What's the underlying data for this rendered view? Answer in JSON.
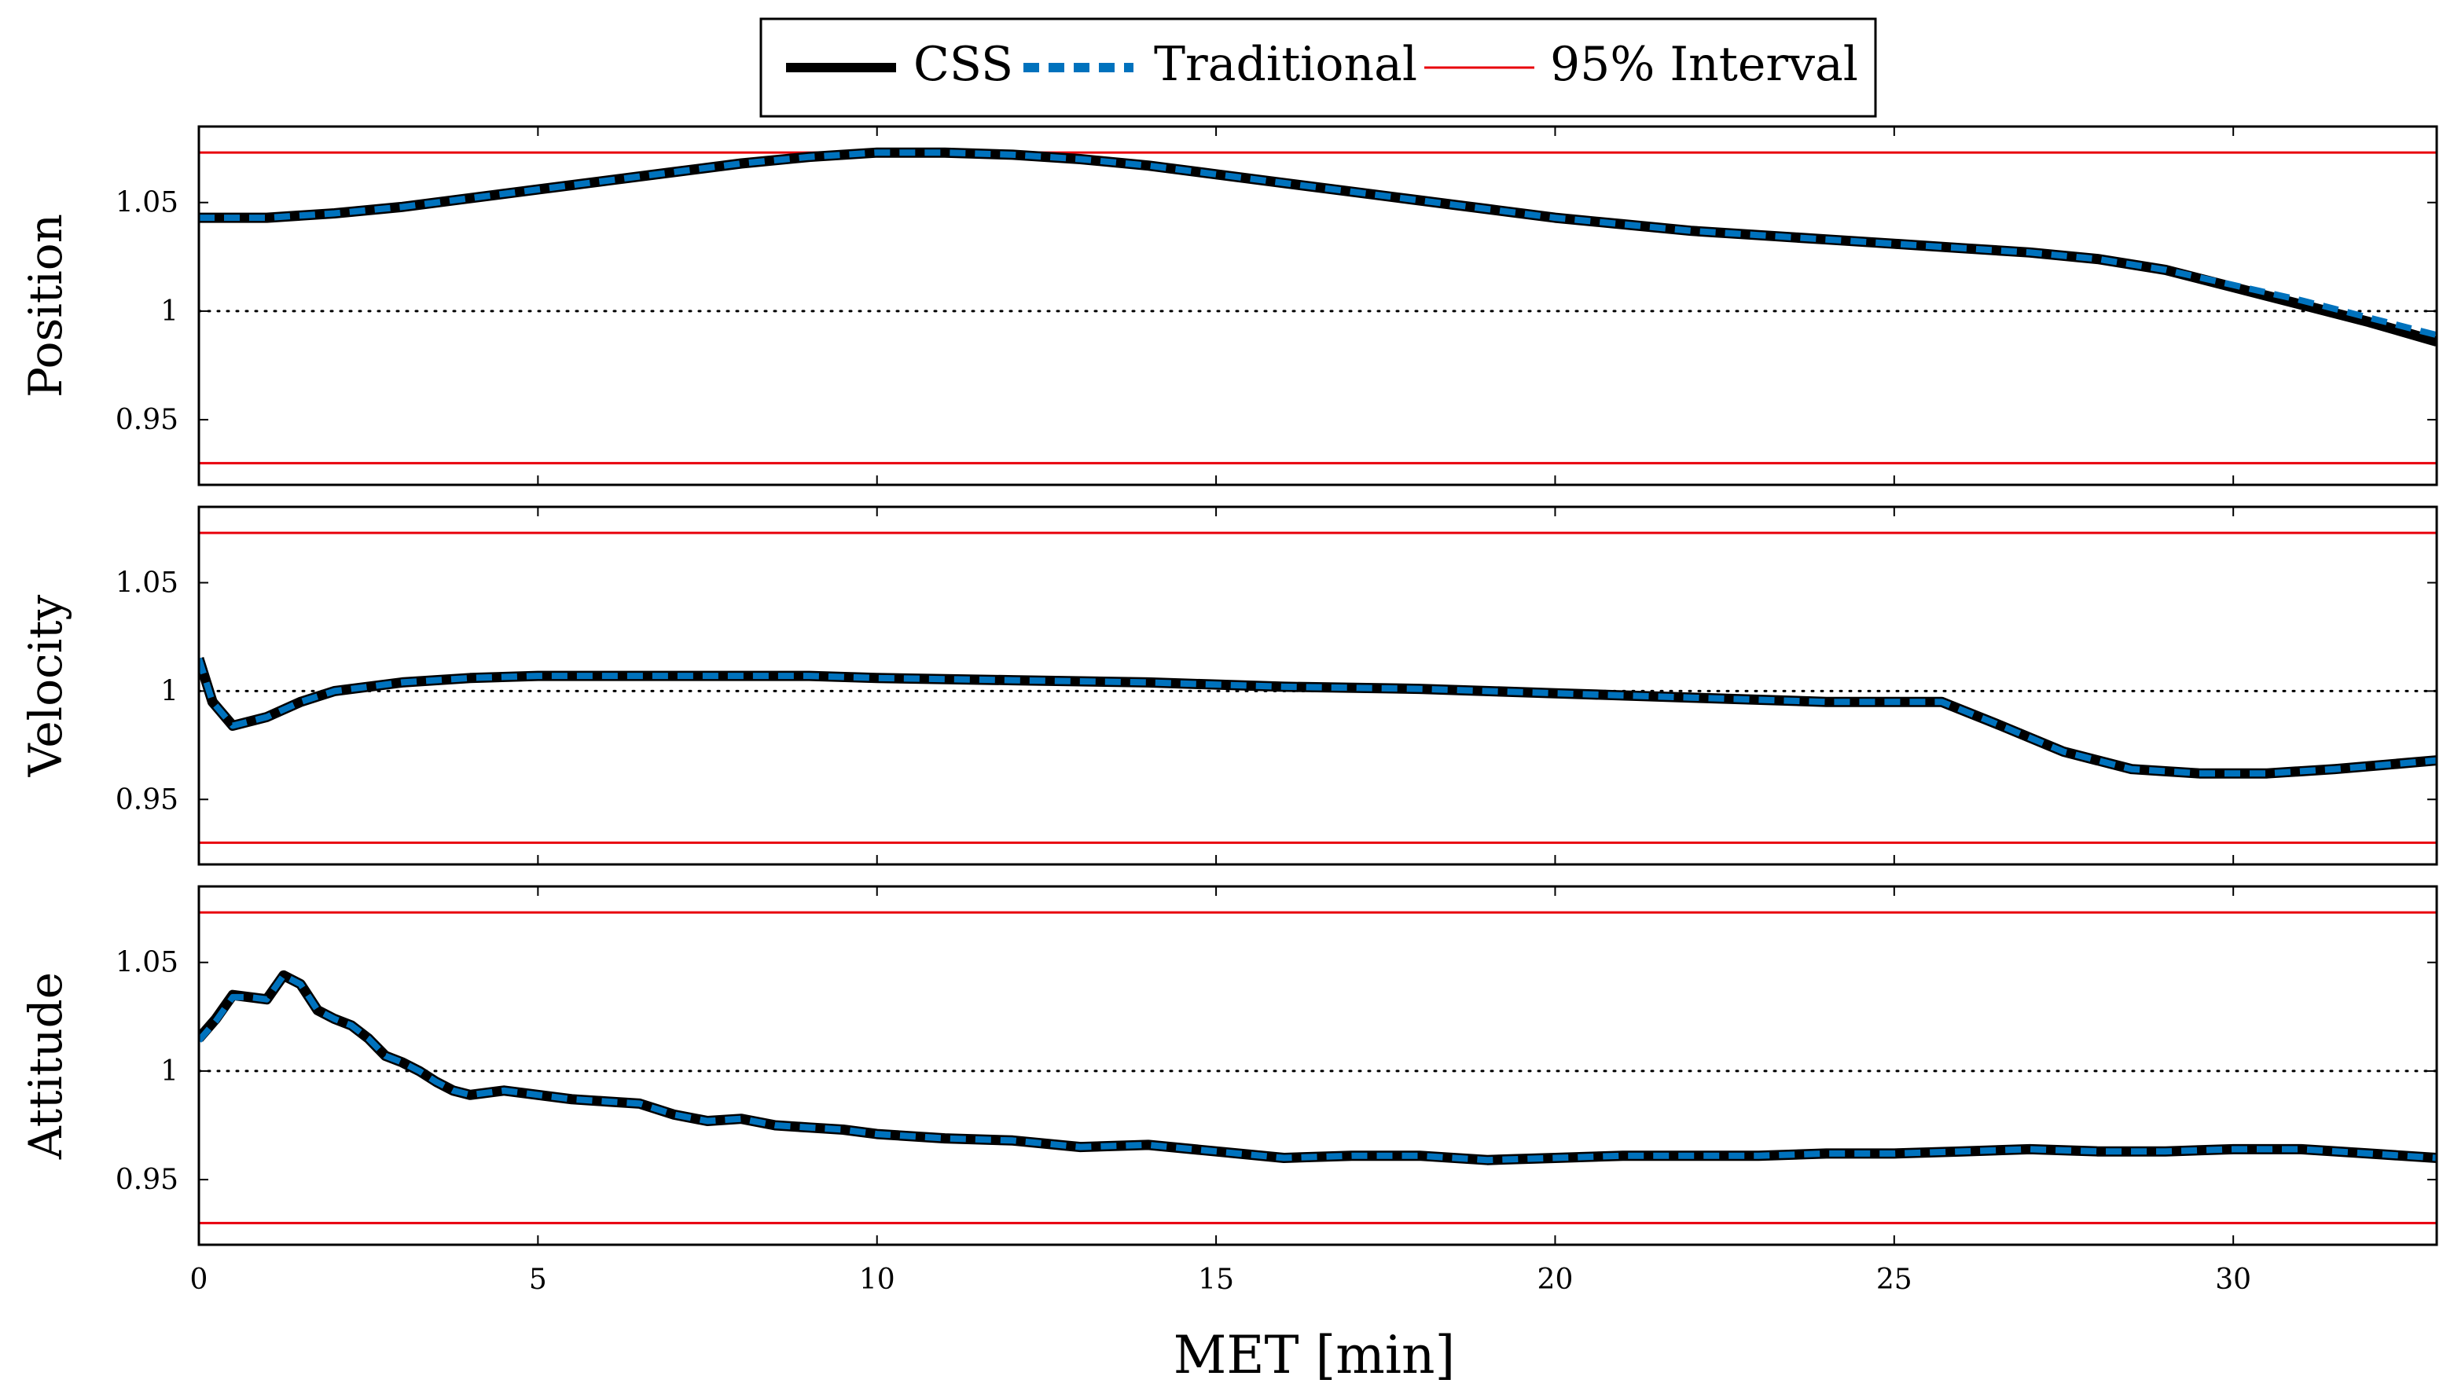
{
  "chart_data": {
    "type": "line",
    "xlabel": "MET [min]",
    "xlim": [
      0,
      33
    ],
    "xticks": [
      0,
      5,
      10,
      15,
      20,
      25,
      30
    ],
    "legend": {
      "placement": "top-center",
      "entries": [
        {
          "label": "CSS",
          "color": "#000000",
          "style": "solid-thick"
        },
        {
          "label": "Traditional",
          "color": "#0072bd",
          "style": "dashed-thick"
        },
        {
          "label": "95% Interval",
          "color": "#e8000b",
          "style": "solid-thin"
        }
      ]
    },
    "reference_line": 1.0,
    "panels": [
      {
        "ylabel": "Position",
        "ylim": [
          0.92,
          1.085
        ],
        "yticks": [
          0.95,
          1,
          1.05
        ],
        "interval": [
          0.93,
          1.073
        ],
        "series": [
          {
            "name": "CSS",
            "x": [
              0,
              1,
              2,
              3,
              4,
              5,
              6,
              7,
              8,
              9,
              10,
              11,
              12,
              13,
              14,
              15,
              16,
              17,
              18,
              19,
              20,
              21,
              22,
              23,
              24,
              25,
              26,
              27,
              28,
              29,
              30,
              31,
              32,
              33
            ],
            "y": [
              1.043,
              1.043,
              1.045,
              1.048,
              1.052,
              1.056,
              1.06,
              1.064,
              1.068,
              1.071,
              1.073,
              1.073,
              1.072,
              1.07,
              1.067,
              1.063,
              1.059,
              1.055,
              1.051,
              1.047,
              1.043,
              1.04,
              1.037,
              1.035,
              1.033,
              1.031,
              1.029,
              1.027,
              1.024,
              1.019,
              1.011,
              1.003,
              0.995,
              0.986
            ]
          },
          {
            "name": "Traditional",
            "x": [
              0,
              1,
              2,
              3,
              4,
              5,
              6,
              7,
              8,
              9,
              10,
              11,
              12,
              13,
              14,
              15,
              16,
              17,
              18,
              19,
              20,
              21,
              22,
              23,
              24,
              25,
              26,
              27,
              28,
              29,
              30,
              31,
              32,
              33
            ],
            "y": [
              1.043,
              1.043,
              1.045,
              1.048,
              1.052,
              1.056,
              1.06,
              1.064,
              1.068,
              1.071,
              1.073,
              1.073,
              1.072,
              1.07,
              1.067,
              1.063,
              1.059,
              1.055,
              1.051,
              1.047,
              1.043,
              1.04,
              1.037,
              1.035,
              1.033,
              1.031,
              1.029,
              1.027,
              1.024,
              1.019,
              1.012,
              1.005,
              0.997,
              0.989
            ]
          }
        ]
      },
      {
        "ylabel": "Velocity",
        "ylim": [
          0.92,
          1.085
        ],
        "yticks": [
          0.95,
          1,
          1.05
        ],
        "interval": [
          0.93,
          1.073
        ],
        "series": [
          {
            "name": "CSS",
            "x": [
              0,
              0.2,
              0.5,
              1,
              1.5,
              2,
              3,
              4,
              5,
              6,
              7,
              8,
              9,
              10,
              12,
              14,
              16,
              18,
              20,
              22,
              24,
              25,
              25.7,
              26.5,
              27.5,
              28.5,
              29.5,
              30.5,
              31.5,
              33
            ],
            "y": [
              1.015,
              0.995,
              0.984,
              0.988,
              0.995,
              1.0,
              1.004,
              1.006,
              1.007,
              1.007,
              1.007,
              1.007,
              1.007,
              1.006,
              1.005,
              1.004,
              1.002,
              1.001,
              0.999,
              0.997,
              0.995,
              0.995,
              0.995,
              0.985,
              0.972,
              0.964,
              0.962,
              0.962,
              0.964,
              0.968
            ]
          },
          {
            "name": "Traditional",
            "x": [
              0,
              0.2,
              0.5,
              1,
              1.5,
              2,
              3,
              4,
              5,
              6,
              7,
              8,
              9,
              10,
              12,
              14,
              16,
              18,
              20,
              22,
              24,
              25,
              25.7,
              26.5,
              27.5,
              28.5,
              29.5,
              30.5,
              31.5,
              33
            ],
            "y": [
              1.015,
              0.995,
              0.984,
              0.988,
              0.995,
              1.0,
              1.004,
              1.006,
              1.007,
              1.007,
              1.007,
              1.007,
              1.007,
              1.006,
              1.005,
              1.004,
              1.002,
              1.001,
              0.999,
              0.997,
              0.995,
              0.995,
              0.995,
              0.985,
              0.972,
              0.964,
              0.962,
              0.962,
              0.964,
              0.968
            ]
          }
        ]
      },
      {
        "ylabel": "Attitude",
        "ylim": [
          0.92,
          1.085
        ],
        "yticks": [
          0.95,
          1,
          1.05
        ],
        "interval": [
          0.93,
          1.073
        ],
        "series": [
          {
            "name": "CSS",
            "x": [
              0,
              0.25,
              0.5,
              0.75,
              1,
              1.25,
              1.5,
              1.75,
              2,
              2.25,
              2.5,
              2.75,
              3,
              3.25,
              3.5,
              3.75,
              4,
              4.5,
              5,
              5.5,
              6,
              6.5,
              7,
              7.5,
              8,
              8.5,
              9,
              9.5,
              10,
              11,
              12,
              13,
              14,
              15,
              16,
              17,
              18,
              19,
              20,
              21,
              22,
              23,
              24,
              25,
              26,
              27,
              28,
              29,
              30,
              31,
              32,
              33
            ],
            "y": [
              1.015,
              1.024,
              1.035,
              1.034,
              1.033,
              1.044,
              1.04,
              1.028,
              1.024,
              1.021,
              1.015,
              1.007,
              1.004,
              1.0,
              0.995,
              0.991,
              0.989,
              0.991,
              0.989,
              0.987,
              0.986,
              0.985,
              0.98,
              0.977,
              0.978,
              0.975,
              0.974,
              0.973,
              0.971,
              0.969,
              0.968,
              0.965,
              0.966,
              0.963,
              0.96,
              0.961,
              0.961,
              0.959,
              0.96,
              0.961,
              0.961,
              0.961,
              0.962,
              0.962,
              0.963,
              0.964,
              0.963,
              0.963,
              0.964,
              0.964,
              0.962,
              0.96
            ]
          },
          {
            "name": "Traditional",
            "x": [
              0,
              0.25,
              0.5,
              0.75,
              1,
              1.25,
              1.5,
              1.75,
              2,
              2.25,
              2.5,
              2.75,
              3,
              3.25,
              3.5,
              3.75,
              4,
              4.5,
              5,
              5.5,
              6,
              6.5,
              7,
              7.5,
              8,
              8.5,
              9,
              9.5,
              10,
              11,
              12,
              13,
              14,
              15,
              16,
              17,
              18,
              19,
              20,
              21,
              22,
              23,
              24,
              25,
              26,
              27,
              28,
              29,
              30,
              31,
              32,
              33
            ],
            "y": [
              1.014,
              1.023,
              1.034,
              1.034,
              1.033,
              1.044,
              1.04,
              1.028,
              1.024,
              1.021,
              1.015,
              1.007,
              1.004,
              1.0,
              0.995,
              0.991,
              0.989,
              0.991,
              0.989,
              0.987,
              0.986,
              0.985,
              0.98,
              0.977,
              0.978,
              0.975,
              0.974,
              0.973,
              0.971,
              0.969,
              0.968,
              0.965,
              0.966,
              0.963,
              0.96,
              0.961,
              0.961,
              0.959,
              0.96,
              0.961,
              0.961,
              0.961,
              0.962,
              0.962,
              0.963,
              0.964,
              0.963,
              0.963,
              0.964,
              0.964,
              0.962,
              0.96
            ]
          }
        ]
      }
    ]
  }
}
